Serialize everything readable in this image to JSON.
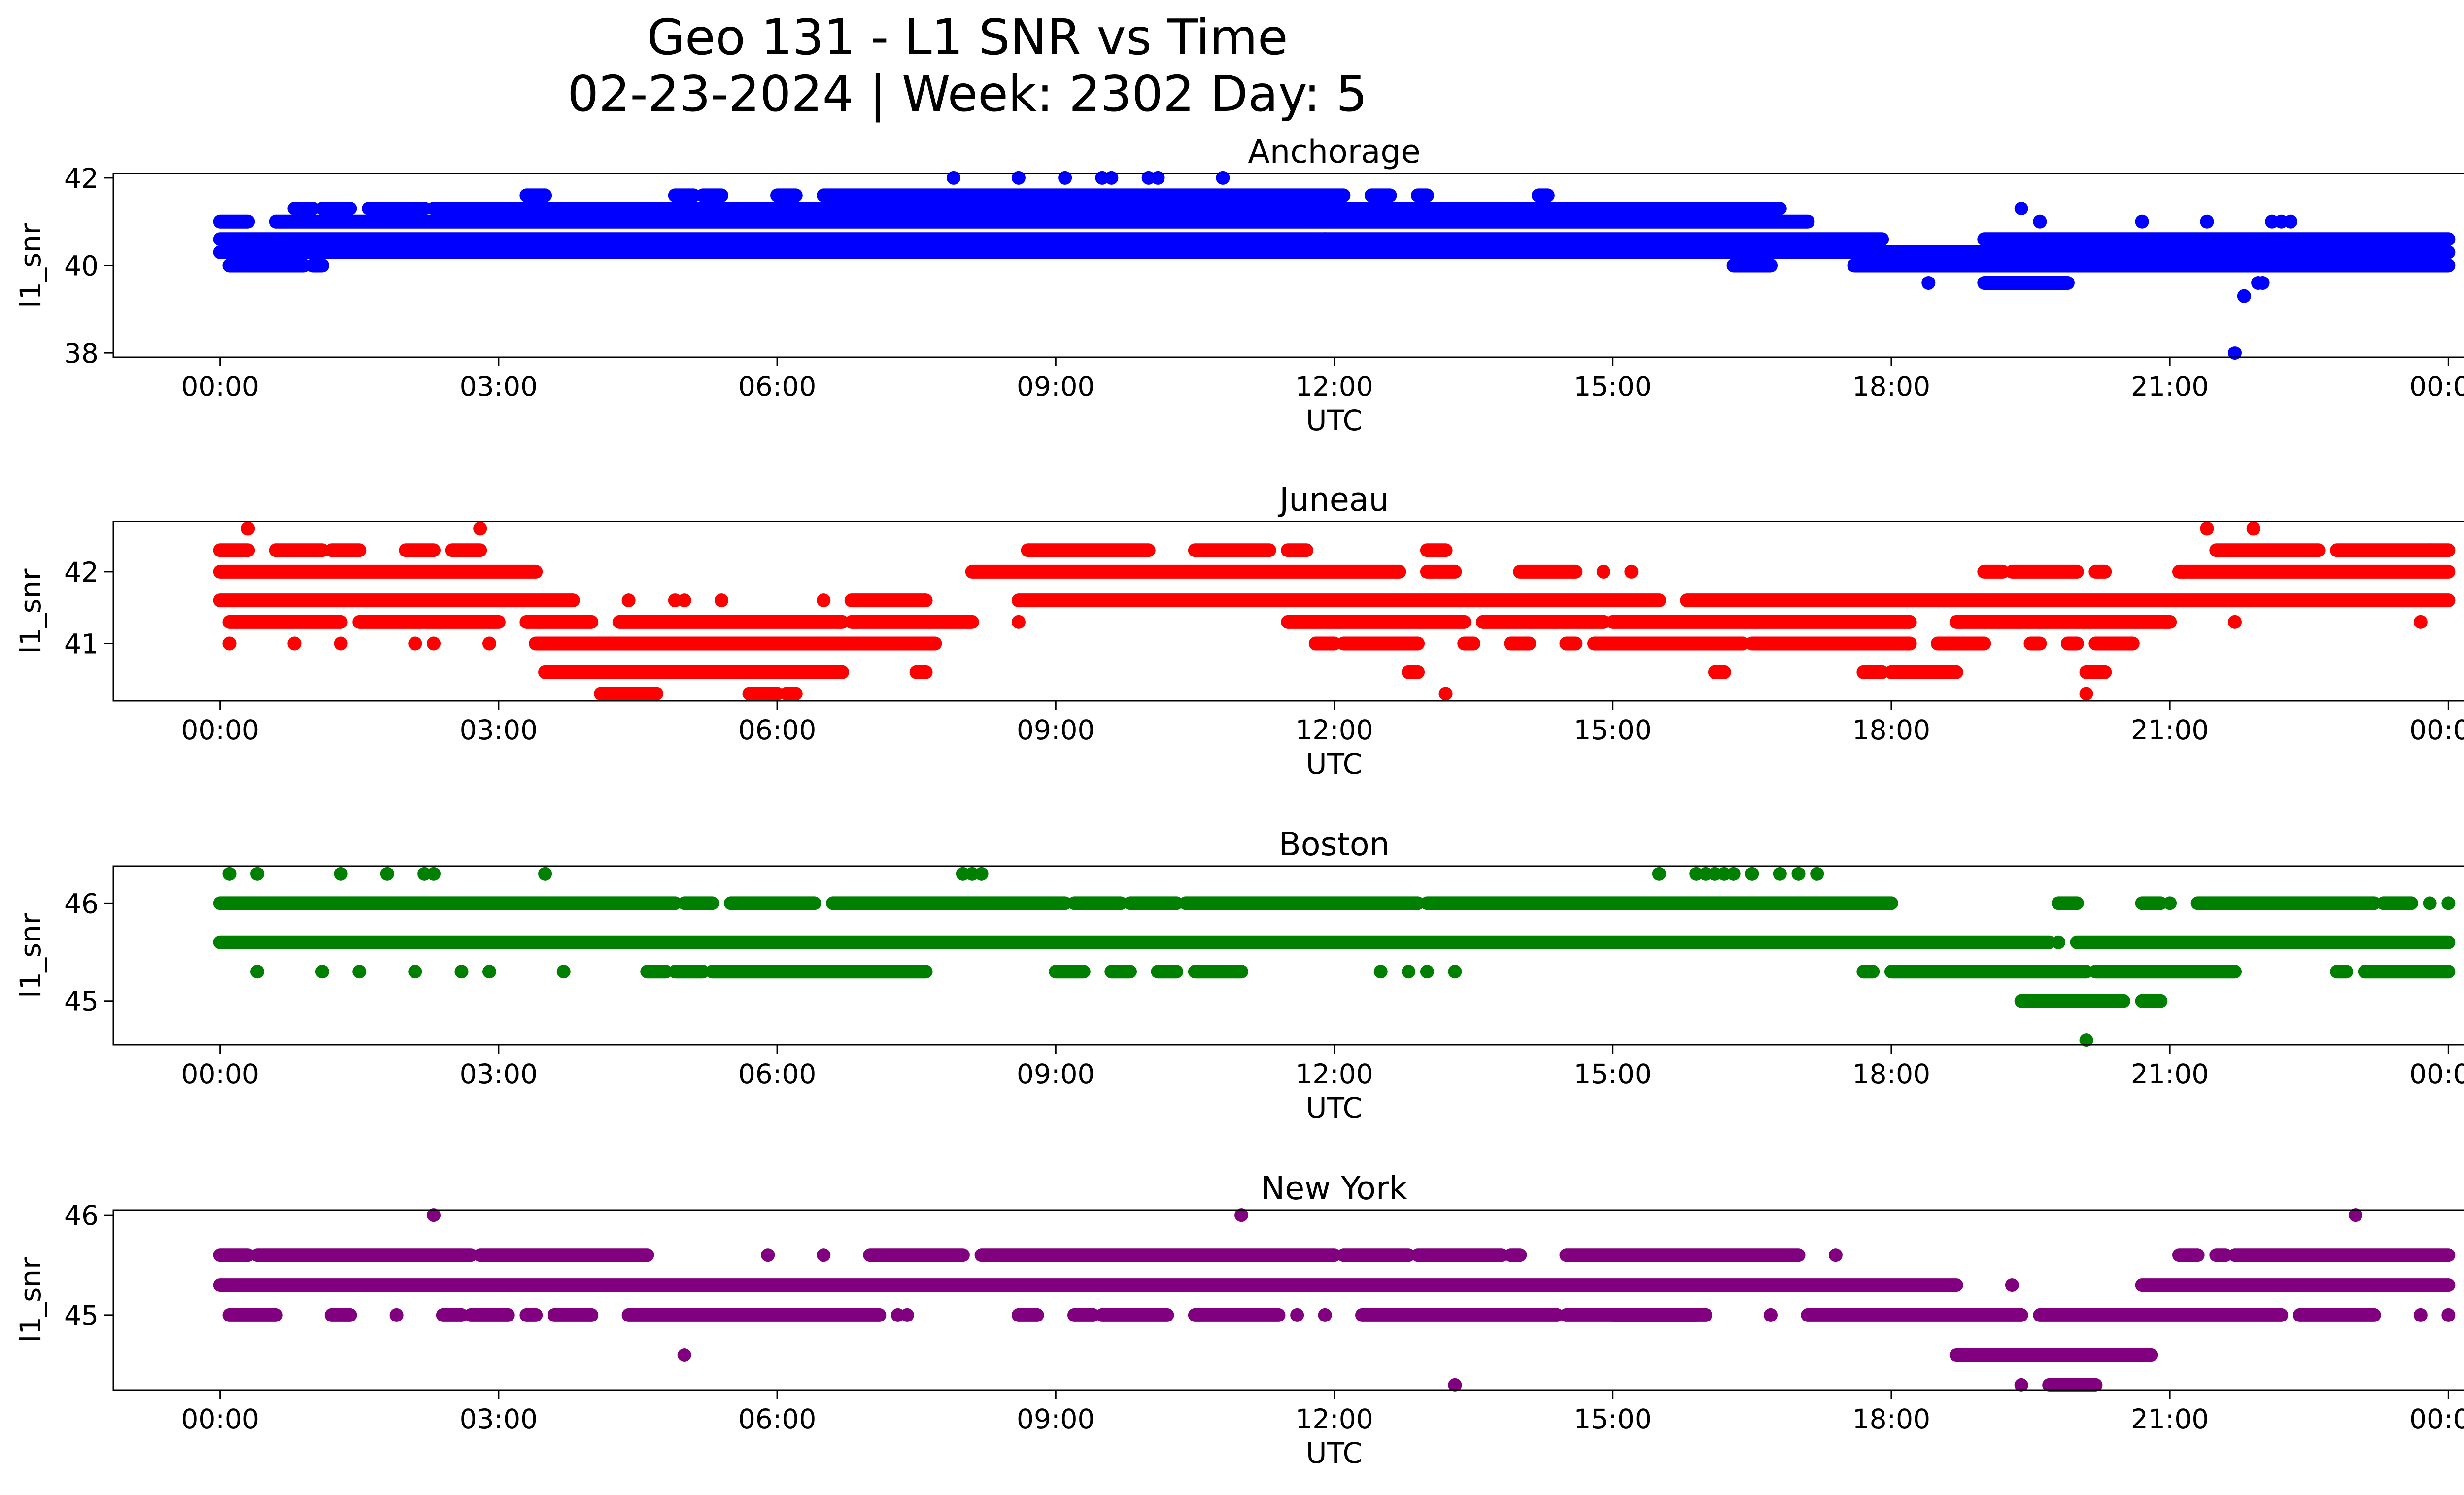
{
  "figure": {
    "title_line1": "Geo 131 - L1 SNR vs Time",
    "title_line2": "02-23-2024 | Week: 2302 Day: 5"
  },
  "chart_data": [
    {
      "type": "scatter",
      "title": "Anchorage",
      "xlabel": "UTC",
      "ylabel": "l1_snr",
      "color": "#0000ff",
      "xlim_hours": [
        -1.15,
        25.15
      ],
      "ylim": [
        37.9,
        42.1
      ],
      "xticks": [
        "00:00",
        "03:00",
        "06:00",
        "09:00",
        "12:00",
        "15:00",
        "18:00",
        "21:00",
        "00:00"
      ],
      "yticks": [
        38,
        40,
        42
      ],
      "bands": [
        {
          "y": 41.6,
          "ranges": [
            [
              3.3,
              3.5
            ],
            [
              4.9,
              5.1
            ],
            [
              5.2,
              5.4
            ],
            [
              6.0,
              6.2
            ],
            [
              6.5,
              12.1
            ],
            [
              12.4,
              12.6
            ],
            [
              12.9,
              13.0
            ],
            [
              14.2,
              14.3
            ]
          ]
        },
        {
          "y": 41.3,
          "ranges": [
            [
              0.8,
              1.0
            ],
            [
              1.1,
              1.4
            ],
            [
              1.6,
              2.2
            ],
            [
              2.3,
              16.8
            ]
          ]
        },
        {
          "y": 41.0,
          "ranges": [
            [
              0.0,
              0.3
            ],
            [
              0.6,
              17.1
            ]
          ]
        },
        {
          "y": 40.6,
          "ranges": [
            [
              0.0,
              17.9
            ],
            [
              19.0,
              24.0
            ]
          ]
        },
        {
          "y": 40.3,
          "ranges": [
            [
              0.0,
              24.0
            ]
          ]
        },
        {
          "y": 40.0,
          "ranges": [
            [
              0.1,
              0.9
            ],
            [
              1.0,
              1.1
            ],
            [
              16.3,
              16.7
            ],
            [
              17.6,
              24.0
            ]
          ]
        },
        {
          "y": 39.6,
          "ranges": [
            [
              19.0,
              19.9
            ]
          ]
        }
      ],
      "points": [
        [
          7.9,
          42.0
        ],
        [
          8.6,
          42.0
        ],
        [
          9.1,
          42.0
        ],
        [
          9.5,
          42.0
        ],
        [
          9.6,
          42.0
        ],
        [
          10.0,
          42.0
        ],
        [
          10.1,
          42.0
        ],
        [
          10.8,
          42.0
        ],
        [
          11.9,
          40.6
        ],
        [
          18.4,
          39.6
        ],
        [
          19.4,
          41.3
        ],
        [
          19.6,
          41.0
        ],
        [
          20.7,
          41.0
        ],
        [
          21.4,
          41.0
        ],
        [
          21.7,
          38.0
        ],
        [
          21.8,
          39.3
        ],
        [
          21.95,
          39.6
        ],
        [
          22.0,
          39.6
        ],
        [
          22.1,
          41.0
        ],
        [
          22.2,
          41.0
        ],
        [
          22.3,
          41.0
        ],
        [
          4.4,
          40.3
        ],
        [
          4.6,
          40.3
        ],
        [
          6.2,
          40.3
        ],
        [
          1.7,
          40.3
        ],
        [
          0.6,
          40.0
        ]
      ]
    },
    {
      "type": "scatter",
      "title": "Juneau",
      "xlabel": "UTC",
      "ylabel": "l1_snr",
      "color": "#ff0000",
      "xlim_hours": [
        -1.15,
        25.15
      ],
      "ylim": [
        40.2,
        42.7
      ],
      "xticks": [
        "00:00",
        "03:00",
        "06:00",
        "09:00",
        "12:00",
        "15:00",
        "18:00",
        "21:00",
        "00:00"
      ],
      "yticks": [
        41,
        42
      ],
      "bands": [
        {
          "y": 42.3,
          "ranges": [
            [
              0.0,
              0.3
            ],
            [
              0.6,
              1.1
            ],
            [
              1.2,
              1.5
            ],
            [
              2.0,
              2.3
            ],
            [
              2.5,
              2.8
            ],
            [
              8.7,
              10.0
            ],
            [
              10.5,
              11.3
            ],
            [
              11.5,
              11.7
            ],
            [
              13.0,
              13.2
            ],
            [
              21.5,
              22.6
            ],
            [
              22.8,
              24.0
            ]
          ]
        },
        {
          "y": 42.0,
          "ranges": [
            [
              0.0,
              3.4
            ],
            [
              8.1,
              12.7
            ],
            [
              13.0,
              13.3
            ],
            [
              14.0,
              14.6
            ],
            [
              19.0,
              19.2
            ],
            [
              19.3,
              20.0
            ],
            [
              20.2,
              20.3
            ],
            [
              21.1,
              24.0
            ]
          ]
        },
        {
          "y": 41.6,
          "ranges": [
            [
              0.0,
              3.8
            ],
            [
              6.8,
              7.6
            ],
            [
              8.6,
              15.5
            ],
            [
              15.8,
              24.0
            ]
          ]
        },
        {
          "y": 41.3,
          "ranges": [
            [
              0.1,
              1.3
            ],
            [
              1.5,
              3.0
            ],
            [
              3.3,
              4.0
            ],
            [
              4.3,
              6.7
            ],
            [
              6.8,
              8.1
            ],
            [
              11.5,
              13.4
            ],
            [
              13.6,
              14.9
            ],
            [
              15.0,
              18.2
            ],
            [
              18.7,
              21.0
            ]
          ]
        },
        {
          "y": 41.0,
          "ranges": [
            [
              3.4,
              7.7
            ],
            [
              11.8,
              12.0
            ],
            [
              12.1,
              12.9
            ],
            [
              13.4,
              13.5
            ],
            [
              13.9,
              14.1
            ],
            [
              14.5,
              14.6
            ],
            [
              14.8,
              16.4
            ],
            [
              16.5,
              18.2
            ],
            [
              18.5,
              19.0
            ],
            [
              19.5,
              19.6
            ],
            [
              19.9,
              20.0
            ],
            [
              20.2,
              20.6
            ]
          ]
        },
        {
          "y": 40.6,
          "ranges": [
            [
              3.5,
              6.7
            ],
            [
              7.5,
              7.6
            ],
            [
              12.8,
              12.9
            ],
            [
              16.1,
              16.2
            ],
            [
              17.7,
              17.9
            ],
            [
              18.0,
              18.7
            ],
            [
              20.1,
              20.3
            ]
          ]
        },
        {
          "y": 40.3,
          "ranges": [
            [
              4.1,
              4.7
            ],
            [
              5.7,
              6.0
            ],
            [
              6.1,
              6.2
            ]
          ]
        }
      ],
      "points": [
        [
          0.1,
          41.0
        ],
        [
          0.3,
          42.6
        ],
        [
          0.8,
          41.0
        ],
        [
          1.3,
          41.0
        ],
        [
          2.1,
          41.0
        ],
        [
          2.3,
          41.0
        ],
        [
          2.8,
          42.6
        ],
        [
          2.9,
          41.3
        ],
        [
          2.9,
          41.0
        ],
        [
          4.4,
          41.6
        ],
        [
          4.9,
          41.6
        ],
        [
          5.0,
          41.6
        ],
        [
          5.4,
          41.6
        ],
        [
          6.5,
          41.6
        ],
        [
          8.6,
          41.3
        ],
        [
          13.2,
          40.3
        ],
        [
          14.9,
          42.0
        ],
        [
          15.2,
          42.0
        ],
        [
          20.1,
          40.3
        ],
        [
          21.4,
          42.6
        ],
        [
          21.7,
          41.3
        ],
        [
          21.9,
          42.6
        ],
        [
          23.7,
          41.3
        ],
        [
          23.8,
          42.3
        ]
      ]
    },
    {
      "type": "scatter",
      "title": "Boston",
      "xlabel": "UTC",
      "ylabel": "l1_snr",
      "color": "#008000",
      "xlim_hours": [
        -1.15,
        25.15
      ],
      "ylim": [
        44.55,
        46.38
      ],
      "xticks": [
        "00:00",
        "03:00",
        "06:00",
        "09:00",
        "12:00",
        "15:00",
        "18:00",
        "21:00",
        "00:00"
      ],
      "yticks": [
        45,
        46
      ],
      "bands": [
        {
          "y": 46.0,
          "ranges": [
            [
              0.0,
              4.9
            ],
            [
              5.0,
              5.3
            ],
            [
              5.5,
              6.4
            ],
            [
              6.6,
              9.1
            ],
            [
              9.2,
              9.7
            ],
            [
              9.8,
              10.3
            ],
            [
              10.4,
              12.9
            ],
            [
              13.0,
              18.0
            ],
            [
              19.8,
              20.0
            ],
            [
              20.7,
              20.9
            ],
            [
              21.3,
              23.2
            ],
            [
              23.3,
              23.6
            ]
          ]
        },
        {
          "y": 45.6,
          "ranges": [
            [
              0.0,
              19.7
            ],
            [
              20.0,
              24.0
            ]
          ]
        },
        {
          "y": 45.3,
          "ranges": [
            [
              4.6,
              4.8
            ],
            [
              4.9,
              5.2
            ],
            [
              5.3,
              7.6
            ],
            [
              9.0,
              9.3
            ],
            [
              9.6,
              9.8
            ],
            [
              10.1,
              10.3
            ],
            [
              10.5,
              11.0
            ],
            [
              17.7,
              17.8
            ],
            [
              18.0,
              20.1
            ],
            [
              20.2,
              21.7
            ],
            [
              22.8,
              22.9
            ],
            [
              23.1,
              24.0
            ]
          ]
        },
        {
          "y": 45.0,
          "ranges": [
            [
              19.4,
              20.5
            ],
            [
              20.7,
              20.9
            ]
          ]
        }
      ],
      "points": [
        [
          0.1,
          46.3
        ],
        [
          0.4,
          46.3
        ],
        [
          1.3,
          46.3
        ],
        [
          1.8,
          46.3
        ],
        [
          2.2,
          46.3
        ],
        [
          2.3,
          46.3
        ],
        [
          3.5,
          46.3
        ],
        [
          8.0,
          46.3
        ],
        [
          8.1,
          46.3
        ],
        [
          8.2,
          46.3
        ],
        [
          15.5,
          46.3
        ],
        [
          15.9,
          46.3
        ],
        [
          16.0,
          46.3
        ],
        [
          16.1,
          46.3
        ],
        [
          16.2,
          46.3
        ],
        [
          16.3,
          46.3
        ],
        [
          16.5,
          46.3
        ],
        [
          16.8,
          46.3
        ],
        [
          17.0,
          46.3
        ],
        [
          17.2,
          46.3
        ],
        [
          0.4,
          45.3
        ],
        [
          1.1,
          45.3
        ],
        [
          1.5,
          45.3
        ],
        [
          2.1,
          45.3
        ],
        [
          2.6,
          45.3
        ],
        [
          2.9,
          45.3
        ],
        [
          3.7,
          45.3
        ],
        [
          12.5,
          45.3
        ],
        [
          12.8,
          45.3
        ],
        [
          13.0,
          45.3
        ],
        [
          13.3,
          45.3
        ],
        [
          19.8,
          45.6
        ],
        [
          20.1,
          44.6
        ],
        [
          21.0,
          46.0
        ],
        [
          23.8,
          46.0
        ],
        [
          24.0,
          46.0
        ]
      ]
    },
    {
      "type": "scatter",
      "title": "New York",
      "xlabel": "UTC",
      "ylabel": "l1_snr",
      "color": "#800080",
      "xlim_hours": [
        -1.15,
        25.15
      ],
      "ylim": [
        44.25,
        46.05
      ],
      "xticks": [
        "00:00",
        "03:00",
        "06:00",
        "09:00",
        "12:00",
        "15:00",
        "18:00",
        "21:00",
        "00:00"
      ],
      "yticks": [
        45,
        46
      ],
      "bands": [
        {
          "y": 45.6,
          "ranges": [
            [
              0.0,
              0.3
            ],
            [
              0.4,
              2.7
            ],
            [
              2.8,
              4.6
            ],
            [
              7.0,
              8.0
            ],
            [
              8.2,
              12.0
            ],
            [
              12.1,
              12.8
            ],
            [
              12.9,
              13.8
            ],
            [
              13.9,
              14.0
            ],
            [
              14.5,
              17.0
            ],
            [
              21.1,
              21.3
            ],
            [
              21.5,
              21.6
            ],
            [
              21.7,
              24.0
            ]
          ]
        },
        {
          "y": 45.3,
          "ranges": [
            [
              0.0,
              18.7
            ],
            [
              20.7,
              24.0
            ]
          ]
        },
        {
          "y": 45.0,
          "ranges": [
            [
              0.1,
              0.6
            ],
            [
              1.2,
              1.4
            ],
            [
              2.4,
              2.6
            ],
            [
              2.7,
              3.1
            ],
            [
              3.3,
              3.4
            ],
            [
              3.6,
              4.0
            ],
            [
              4.4,
              7.1
            ],
            [
              8.6,
              8.8
            ],
            [
              9.2,
              9.4
            ],
            [
              9.5,
              10.2
            ],
            [
              10.5,
              11.4
            ],
            [
              12.3,
              14.4
            ],
            [
              14.5,
              15.9
            ],
            [
              15.0,
              16.0
            ],
            [
              17.1,
              19.4
            ],
            [
              19.6,
              22.2
            ],
            [
              22.4,
              23.2
            ]
          ]
        },
        {
          "y": 44.6,
          "ranges": [
            [
              18.7,
              20.8
            ]
          ]
        },
        {
          "y": 44.3,
          "ranges": [
            [
              19.7,
              20.2
            ]
          ]
        }
      ],
      "points": [
        [
          2.3,
          46.0
        ],
        [
          11.0,
          46.0
        ],
        [
          23.0,
          46.0
        ],
        [
          5.0,
          44.6
        ],
        [
          13.3,
          44.3
        ],
        [
          19.4,
          44.3
        ],
        [
          5.9,
          45.6
        ],
        [
          6.5,
          45.6
        ],
        [
          17.4,
          45.6
        ],
        [
          19.3,
          45.3
        ],
        [
          1.9,
          45.0
        ],
        [
          7.3,
          45.0
        ],
        [
          7.4,
          45.0
        ],
        [
          16.7,
          45.0
        ],
        [
          23.7,
          45.0
        ],
        [
          24.0,
          45.0
        ],
        [
          11.6,
          45.0
        ],
        [
          11.9,
          45.0
        ]
      ]
    }
  ]
}
